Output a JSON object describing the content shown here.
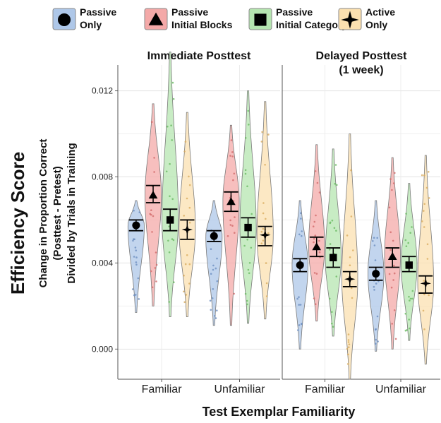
{
  "chart_data": {
    "type": "violin",
    "ylabel_main": "Efficiency Score",
    "ylabel_sub": [
      "Change in Proportion Correct",
      "(Posttest - Pretest)",
      "Divided by Trials in Training"
    ],
    "xlabel": "Test Exemplar Familiarity",
    "ylim": [
      -0.0014,
      0.0132
    ],
    "yticks": [
      0.0,
      0.004,
      0.008,
      0.012
    ],
    "ytick_labels": [
      "0.000",
      "0.004",
      "0.008",
      "0.012"
    ],
    "grid": true,
    "legend_position": "top",
    "categories": [
      "Familiar",
      "Unfamiliar"
    ],
    "panels": [
      {
        "title_lines": [
          "Immediate Posttest"
        ],
        "groups": [
          {
            "category": "Familiar",
            "series": "Passive Only",
            "mean": 0.00575,
            "ci_low": 0.0055,
            "ci_high": 0.006,
            "min": 0.0017,
            "max": 0.0069
          },
          {
            "category": "Familiar",
            "series": "Passive Initial Blocks",
            "mean": 0.00715,
            "ci_low": 0.0068,
            "ci_high": 0.0076,
            "min": 0.002,
            "max": 0.0114
          },
          {
            "category": "Familiar",
            "series": "Passive Initial Category",
            "mean": 0.006,
            "ci_low": 0.0055,
            "ci_high": 0.0065,
            "min": 0.0015,
            "max": 0.0138
          },
          {
            "category": "Familiar",
            "series": "Active Only",
            "mean": 0.00555,
            "ci_low": 0.0051,
            "ci_high": 0.006,
            "min": 0.0015,
            "max": 0.011
          },
          {
            "category": "Unfamiliar",
            "series": "Passive Only",
            "mean": 0.00525,
            "ci_low": 0.005,
            "ci_high": 0.0055,
            "min": 0.0011,
            "max": 0.0069
          },
          {
            "category": "Unfamiliar",
            "series": "Passive Initial Blocks",
            "mean": 0.00685,
            "ci_low": 0.0064,
            "ci_high": 0.0073,
            "min": 0.0011,
            "max": 0.0104
          },
          {
            "category": "Unfamiliar",
            "series": "Passive Initial Category",
            "mean": 0.00565,
            "ci_low": 0.0052,
            "ci_high": 0.0061,
            "min": 0.0012,
            "max": 0.012
          },
          {
            "category": "Unfamiliar",
            "series": "Active Only",
            "mean": 0.0053,
            "ci_low": 0.0048,
            "ci_high": 0.0057,
            "min": 0.0014,
            "max": 0.0115
          }
        ]
      },
      {
        "title_lines": [
          "Delayed Posttest",
          "(1 week)"
        ],
        "groups": [
          {
            "category": "Familiar",
            "series": "Passive Only",
            "mean": 0.0039,
            "ci_low": 0.0036,
            "ci_high": 0.0042,
            "min": 0.0,
            "max": 0.0069
          },
          {
            "category": "Familiar",
            "series": "Passive Initial Blocks",
            "mean": 0.00475,
            "ci_low": 0.0043,
            "ci_high": 0.0052,
            "min": 0.0013,
            "max": 0.0095
          },
          {
            "category": "Familiar",
            "series": "Passive Initial Category",
            "mean": 0.00425,
            "ci_low": 0.0038,
            "ci_high": 0.0047,
            "min": 0.0006,
            "max": 0.0093
          },
          {
            "category": "Familiar",
            "series": "Active Only",
            "mean": 0.00325,
            "ci_low": 0.0029,
            "ci_high": 0.0036,
            "min": -0.0014,
            "max": 0.01
          },
          {
            "category": "Unfamiliar",
            "series": "Passive Only",
            "mean": 0.0035,
            "ci_low": 0.0032,
            "ci_high": 0.0038,
            "min": -0.0001,
            "max": 0.0069
          },
          {
            "category": "Unfamiliar",
            "series": "Passive Initial Blocks",
            "mean": 0.0043,
            "ci_low": 0.0038,
            "ci_high": 0.0047,
            "min": 0.0,
            "max": 0.0089
          },
          {
            "category": "Unfamiliar",
            "series": "Passive Initial Category",
            "mean": 0.0039,
            "ci_low": 0.0036,
            "ci_high": 0.0043,
            "min": 0.0004,
            "max": 0.0077
          },
          {
            "category": "Unfamiliar",
            "series": "Active Only",
            "mean": 0.00305,
            "ci_low": 0.0026,
            "ci_high": 0.0034,
            "min": -0.0007,
            "max": 0.009
          }
        ]
      }
    ]
  },
  "legend": {
    "items": [
      {
        "label_lines": [
          "Passive",
          "Only"
        ],
        "color": "#aec7e8",
        "marker": "circle"
      },
      {
        "label_lines": [
          "Passive",
          "Initial Blocks"
        ],
        "color": "#f4a9a8",
        "marker": "triangle"
      },
      {
        "label_lines": [
          "Passive",
          "Initial Category"
        ],
        "color": "#b5e5b0",
        "marker": "square"
      },
      {
        "label_lines": [
          "Active",
          "Only"
        ],
        "color": "#fbe0b0",
        "marker": "star"
      }
    ]
  }
}
